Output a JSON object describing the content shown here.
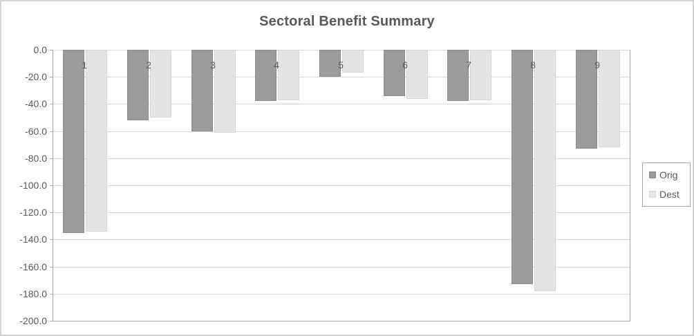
{
  "title": "Sectoral Benefit Summary",
  "chart_data": {
    "type": "bar",
    "title": "Sectoral Benefit Summary",
    "categories": [
      "1",
      "2",
      "3",
      "4",
      "5",
      "6",
      "7",
      "8",
      "9"
    ],
    "series": [
      {
        "name": "Orig",
        "values": [
          -135,
          -52,
          -60,
          -38,
          -20,
          -34,
          -38,
          -173,
          -73
        ],
        "fill": "#9c9c9c",
        "border": "#8c8c8c"
      },
      {
        "name": "Dest",
        "values": [
          -134,
          -50,
          -61,
          -37,
          -17,
          -36,
          -37,
          -178,
          -72
        ],
        "fill": "#e4e4e4",
        "border": "#d6d6d6"
      }
    ],
    "xlabel": "",
    "ylabel": "",
    "ylim": [
      -200,
      0
    ],
    "ytick_step": 20,
    "ytick_labels": [
      "0.0",
      "-20.0",
      "-40.0",
      "-60.0",
      "-80.0",
      "-100.0",
      "-120.0",
      "-140.0",
      "-160.0",
      "-180.0",
      "-200.0"
    ],
    "grid": true,
    "legend_position": "right"
  },
  "colors": {
    "text": "#595959",
    "gridline": "#d9d9d9",
    "axis_line": "#a6a6a6",
    "chart_border": "#d4d4d4",
    "legend_border": "#a6a6a6",
    "background": "#ffffff",
    "orig_fill": "#9c9c9c",
    "dest_fill": "#e4e4e4"
  }
}
